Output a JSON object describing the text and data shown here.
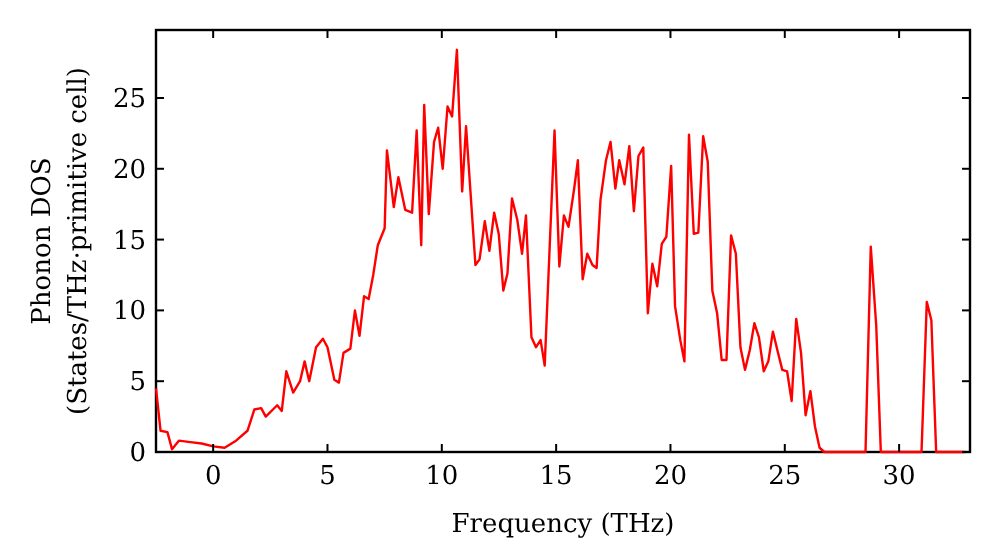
{
  "chart_data": {
    "type": "line",
    "xlabel": "Frequency (THz)",
    "ylabel": "Phonon DOS\n(States/THz·primitive cell)",
    "xlim": [
      -2.5,
      33.1
    ],
    "ylim": [
      0,
      29.8
    ],
    "xticks": [
      0,
      5,
      10,
      15,
      20,
      25,
      30
    ],
    "yticks": [
      0,
      5,
      10,
      15,
      20,
      25
    ],
    "grid": false,
    "marker": "none",
    "line_style": "solid",
    "series": [
      {
        "color": "#ff0000",
        "x": [
          -2.5,
          -2.3,
          -2,
          -1.8,
          -1.5,
          -1,
          -0.5,
          0,
          0.5,
          1,
          1.5,
          1.8,
          2.1,
          2.3,
          2.8,
          3,
          3.2,
          3.5,
          3.8,
          4,
          4.2,
          4.5,
          4.8,
          5,
          5.3,
          5.5,
          5.7,
          6,
          6.2,
          6.4,
          6.6,
          6.8,
          7,
          7.2,
          7.5,
          7.6,
          7.9,
          8.1,
          8.4,
          8.7,
          8.9,
          9.1,
          9.23,
          9.43,
          9.66,
          9.84,
          10.04,
          10.25,
          10.45,
          10.66,
          10.89,
          11.06,
          11.47,
          11.65,
          11.88,
          12.08,
          12.29,
          12.49,
          12.69,
          12.87,
          13.07,
          13.3,
          13.51,
          13.68,
          13.92,
          14.12,
          14.32,
          14.5,
          14.93,
          15.14,
          15.34,
          15.54,
          15.78,
          15.95,
          16.16,
          16.36,
          16.59,
          16.77,
          16.94,
          17.18,
          17.38,
          17.59,
          17.76,
          17.99,
          18.2,
          18.4,
          18.6,
          18.81,
          19.01,
          19.21,
          19.42,
          19.62,
          19.82,
          20.03,
          20.2,
          20.43,
          20.61,
          20.81,
          21.02,
          21.22,
          21.43,
          21.63,
          21.83,
          22.04,
          22.24,
          22.45,
          22.65,
          22.86,
          23.06,
          23.26,
          23.47,
          23.67,
          23.87,
          24.08,
          24.28,
          24.48,
          24.69,
          24.89,
          25.1,
          25.3,
          25.5,
          25.71,
          25.91,
          26.12,
          26.32,
          26.52,
          26.73,
          28.53,
          28.76,
          29,
          29.2,
          30.98,
          31.21,
          31.41,
          31.62,
          32.9
        ],
        "values": [
          4.5,
          1.5,
          1.4,
          0.2,
          0.8,
          0.7,
          0.6,
          0.4,
          0.3,
          0.8,
          1.5,
          3,
          3.1,
          2.5,
          3.3,
          2.9,
          5.7,
          4.2,
          5,
          6.4,
          5,
          7.4,
          8,
          7.4,
          5.1,
          4.9,
          7,
          7.3,
          10,
          8.2,
          11,
          10.8,
          12.5,
          14.6,
          15.8,
          21.3,
          17.3,
          19.4,
          17.1,
          16.9,
          22.7,
          14.6,
          24.5,
          16.8,
          21.9,
          22.9,
          20,
          24.4,
          23.7,
          28.4,
          18.4,
          23,
          13.2,
          13.6,
          16.3,
          14.2,
          16.9,
          15.4,
          11.4,
          12.6,
          17.9,
          16.4,
          14,
          16.7,
          8.1,
          7.4,
          7.9,
          6.1,
          22.7,
          13.1,
          16.7,
          15.9,
          18.5,
          20.6,
          12.2,
          14,
          13.2,
          13,
          17.8,
          20.6,
          21.9,
          18.6,
          20.6,
          18.9,
          21.6,
          17,
          20.9,
          21.5,
          9.8,
          13.3,
          11.7,
          14.7,
          15.2,
          20.2,
          10.3,
          7.9,
          6.4,
          22.4,
          15.4,
          15.5,
          22.3,
          20.5,
          11.4,
          9.8,
          6.5,
          6.5,
          15.3,
          14,
          7.4,
          5.8,
          7.2,
          9.1,
          8.1,
          5.7,
          6.4,
          8.5,
          7.1,
          5.8,
          5.7,
          3.6,
          9.4,
          7,
          2.6,
          4.3,
          1.8,
          0.3,
          0,
          0,
          14.5,
          8.9,
          0,
          0,
          10.6,
          9.3,
          0,
          0
        ]
      }
    ]
  }
}
